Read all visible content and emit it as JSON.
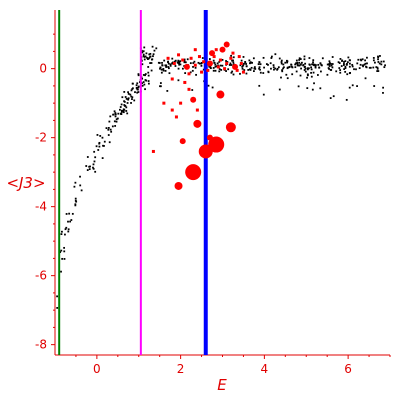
{
  "chart_data": {
    "type": "scatter",
    "xlabel": "E",
    "ylabel": "<J3>",
    "xlim": [
      -1,
      7
    ],
    "ylim": [
      -8.3,
      1.7
    ],
    "xticks": [
      "0",
      "2",
      "4",
      "6"
    ],
    "xtick_values": [
      0,
      2,
      4,
      6
    ],
    "yticks": [
      "0",
      "-2",
      "-4",
      "-6",
      "-8"
    ],
    "ytick_values": [
      0,
      -2,
      -4,
      -6,
      -8
    ],
    "grid": false,
    "axis_color": "#e00000",
    "vertical_lines": [
      {
        "x": -0.9,
        "color": "#008000"
      },
      {
        "x": 1.05,
        "color": "#ff00ff"
      },
      {
        "x": 2.6,
        "color": "#0000ff"
      }
    ],
    "background_points": {
      "color": "#000000",
      "description": "dense cloud of small black dots",
      "seed": 7,
      "counts": {
        "low": 150,
        "high": 420
      }
    },
    "highlight_points": {
      "color": "#ff0000",
      "points": [
        {
          "x": 1.7,
          "y": 0.3,
          "size": 2
        },
        {
          "x": 1.85,
          "y": 0.15,
          "size": 2
        },
        {
          "x": 1.95,
          "y": 0.4,
          "size": 2
        },
        {
          "x": 2.05,
          "y": 0.25,
          "size": 2
        },
        {
          "x": 2.15,
          "y": 0.05,
          "size": 3
        },
        {
          "x": 2.25,
          "y": 0.3,
          "size": 2
        },
        {
          "x": 2.35,
          "y": 0.1,
          "size": 2
        },
        {
          "x": 2.45,
          "y": 0.35,
          "size": 2
        },
        {
          "x": 2.55,
          "y": 0.2,
          "size": 2
        },
        {
          "x": 2.7,
          "y": 0.15,
          "size": 3
        },
        {
          "x": 2.8,
          "y": 0.35,
          "size": 2
        },
        {
          "x": 2.9,
          "y": 0.05,
          "size": 2
        },
        {
          "x": 2.95,
          "y": 0.25,
          "size": 2
        },
        {
          "x": 3.05,
          "y": 0.0,
          "size": 2
        },
        {
          "x": 3.1,
          "y": 0.15,
          "size": 2
        },
        {
          "x": 3.2,
          "y": 0.3,
          "size": 2
        },
        {
          "x": 3.3,
          "y": 0.05,
          "size": 3
        },
        {
          "x": 3.35,
          "y": -0.05,
          "size": 2
        },
        {
          "x": 3.45,
          "y": 0.15,
          "size": 2
        },
        {
          "x": 3.5,
          "y": -0.1,
          "size": 2
        },
        {
          "x": 2.2,
          "y": -0.15,
          "size": 2
        },
        {
          "x": 2.5,
          "y": -0.1,
          "size": 2
        },
        {
          "x": 2.75,
          "y": 0.45,
          "size": 3
        },
        {
          "x": 3.0,
          "y": 0.55,
          "size": 3
        },
        {
          "x": 3.1,
          "y": 0.7,
          "size": 3
        },
        {
          "x": 2.35,
          "y": 0.55,
          "size": 2
        },
        {
          "x": 3.25,
          "y": 0.45,
          "size": 2
        },
        {
          "x": 2.65,
          "y": -0.05,
          "size": 2
        },
        {
          "x": 2.85,
          "y": 0.55,
          "size": 2
        },
        {
          "x": 3.4,
          "y": 0.35,
          "size": 2
        },
        {
          "x": 2.1,
          "y": -0.4,
          "size": 2
        },
        {
          "x": 1.8,
          "y": -0.3,
          "size": 2
        },
        {
          "x": 2.2,
          "y": -0.6,
          "size": 2
        },
        {
          "x": 2.3,
          "y": -0.9,
          "size": 3
        },
        {
          "x": 2.0,
          "y": -1.0,
          "size": 2
        },
        {
          "x": 1.6,
          "y": -1.0,
          "size": 2
        },
        {
          "x": 1.8,
          "y": -1.2,
          "size": 2
        },
        {
          "x": 1.9,
          "y": -1.4,
          "size": 2
        },
        {
          "x": 2.4,
          "y": -1.2,
          "size": 2
        },
        {
          "x": 2.95,
          "y": -0.75,
          "size": 4
        },
        {
          "x": 2.4,
          "y": -1.6,
          "size": 4
        },
        {
          "x": 3.2,
          "y": -1.7,
          "size": 5
        },
        {
          "x": 2.05,
          "y": -2.1,
          "size": 3
        },
        {
          "x": 2.7,
          "y": -2.0,
          "size": 3
        },
        {
          "x": 1.35,
          "y": -2.4,
          "size": 2
        },
        {
          "x": 2.85,
          "y": -2.2,
          "size": 8
        },
        {
          "x": 2.6,
          "y": -2.4,
          "size": 7
        },
        {
          "x": 2.3,
          "y": -3.0,
          "size": 8
        },
        {
          "x": 1.95,
          "y": -3.4,
          "size": 4
        }
      ]
    }
  }
}
